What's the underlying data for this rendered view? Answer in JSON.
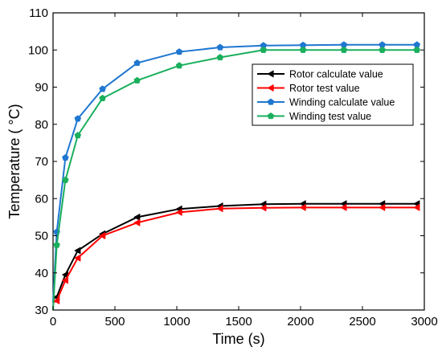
{
  "chart_data": {
    "type": "line",
    "xlabel": "Time (s)",
    "ylabel": "Temperature ( °C)",
    "xlim": [
      0,
      3000
    ],
    "ylim": [
      30,
      110
    ],
    "xticks": [
      0,
      500,
      1000,
      1500,
      2000,
      2500,
      3000
    ],
    "yticks": [
      30,
      40,
      50,
      60,
      70,
      80,
      90,
      100,
      110
    ],
    "grid": false,
    "legend_position": "upper-right",
    "series": [
      {
        "name": "Rotor calculate value",
        "color": "#000000",
        "marker": "triangle-left",
        "x": [
          0,
          30,
          100,
          200,
          400,
          680,
          1020,
          1350,
          1700,
          2020,
          2350,
          2660,
          2940
        ],
        "y": [
          33,
          33.5,
          39.5,
          46,
          50.5,
          55,
          57.2,
          58,
          58.5,
          58.6,
          58.6,
          58.6,
          58.6
        ]
      },
      {
        "name": "Rotor test value",
        "color": "#ff0000",
        "marker": "triangle-left",
        "x": [
          0,
          30,
          100,
          200,
          400,
          680,
          1020,
          1350,
          1700,
          2020,
          2350,
          2660,
          2940
        ],
        "y": [
          32,
          32.5,
          38,
          44,
          50,
          53.5,
          56.3,
          57.3,
          57.5,
          57.6,
          57.6,
          57.6,
          57.6
        ]
      },
      {
        "name": "Winding calculate value",
        "color": "#1f77d0",
        "marker": "pentagon",
        "x": [
          0,
          30,
          100,
          200,
          400,
          680,
          1020,
          1350,
          1700,
          2020,
          2350,
          2660,
          2940
        ],
        "y": [
          32,
          51,
          71,
          81.5,
          89.5,
          96.5,
          99.5,
          100.7,
          101.2,
          101.3,
          101.4,
          101.4,
          101.4
        ]
      },
      {
        "name": "Winding test value",
        "color": "#1aaf5d",
        "marker": "pentagon",
        "x": [
          0,
          30,
          100,
          200,
          400,
          680,
          1020,
          1350,
          1700,
          2020,
          2350,
          2660,
          2940
        ],
        "y": [
          30,
          47.5,
          65,
          77,
          87,
          91.8,
          95.8,
          98,
          100,
          100,
          100,
          100,
          100
        ]
      }
    ]
  }
}
